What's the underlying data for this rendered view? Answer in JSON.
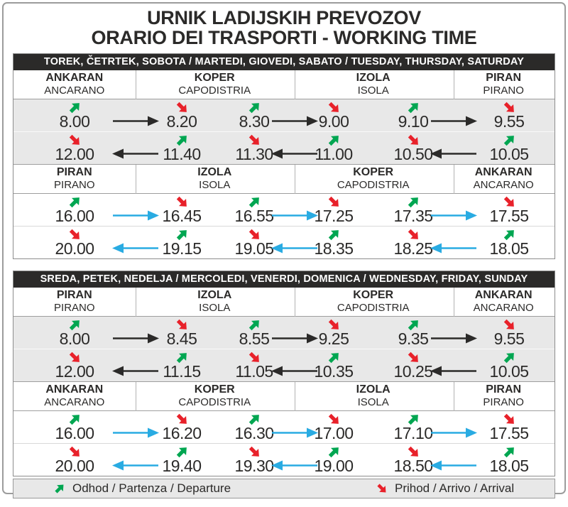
{
  "page": {
    "title_line1": "URNIK LADIJSKIH PREVOZOV",
    "title_line2": "ORARIO DEI TRASPORTI - WORKING TIME"
  },
  "colors": {
    "departure_green": "#00a651",
    "arrival_red": "#e8212a",
    "route_black": "#2b2a29",
    "route_blue": "#29abe2",
    "row_gray": "#e8e8e8",
    "banner_black": "#2b2a29"
  },
  "legend": {
    "departure_icon": "green-northeast-arrow",
    "departure_label": "Odhod / Partenza / Departure",
    "arrival_icon": "red-southeast-arrow",
    "arrival_label": "Prihod / Arrivo / Arrival"
  },
  "tables": [
    {
      "banner": "TOREK, ČETRTEK, SOBOTA / MARTEDI, GIOVEDI, SABATO / TUESDAY, THURSDAY, SATURDAY",
      "sections": [
        {
          "tone": "gray",
          "route_arrow": "black",
          "cities": [
            {
              "name": "ANKARAN",
              "subname": "ANCARANO"
            },
            {
              "name": "KOPER",
              "subname": "CAPODISTRIA"
            },
            {
              "name": "IZOLA",
              "subname": "ISOLA"
            },
            {
              "name": "PIRAN",
              "subname": "PIRANO"
            }
          ],
          "rows": [
            {
              "direction": "forward",
              "times": [
                {
                  "time": "8.00",
                  "event": "departure"
                },
                {
                  "time": "8.20",
                  "event": "arrival"
                },
                {
                  "time": "8.30",
                  "event": "departure"
                },
                {
                  "time": "9.00",
                  "event": "arrival"
                },
                {
                  "time": "9.10",
                  "event": "departure"
                },
                {
                  "time": "9.55",
                  "event": "arrival"
                }
              ]
            },
            {
              "direction": "return",
              "times": [
                {
                  "time": "12.00",
                  "event": "arrival"
                },
                {
                  "time": "11.40",
                  "event": "departure"
                },
                {
                  "time": "11.30",
                  "event": "arrival"
                },
                {
                  "time": "11.00",
                  "event": "departure"
                },
                {
                  "time": "10.50",
                  "event": "arrival"
                },
                {
                  "time": "10.05",
                  "event": "departure"
                }
              ]
            }
          ]
        },
        {
          "tone": "white",
          "route_arrow": "blue",
          "cities": [
            {
              "name": "PIRAN",
              "subname": "PIRANO"
            },
            {
              "name": "IZOLA",
              "subname": "ISOLA"
            },
            {
              "name": "KOPER",
              "subname": "CAPODISTRIA"
            },
            {
              "name": "ANKARAN",
              "subname": "ANCARANO"
            }
          ],
          "rows": [
            {
              "direction": "forward",
              "times": [
                {
                  "time": "16.00",
                  "event": "departure"
                },
                {
                  "time": "16.45",
                  "event": "arrival"
                },
                {
                  "time": "16.55",
                  "event": "departure"
                },
                {
                  "time": "17.25",
                  "event": "arrival"
                },
                {
                  "time": "17.35",
                  "event": "departure"
                },
                {
                  "time": "17.55",
                  "event": "arrival"
                }
              ]
            },
            {
              "direction": "return",
              "times": [
                {
                  "time": "20.00",
                  "event": "arrival"
                },
                {
                  "time": "19.15",
                  "event": "departure"
                },
                {
                  "time": "19.05",
                  "event": "arrival"
                },
                {
                  "time": "18.35",
                  "event": "departure"
                },
                {
                  "time": "18.25",
                  "event": "arrival"
                },
                {
                  "time": "18.05",
                  "event": "departure"
                }
              ]
            }
          ]
        }
      ]
    },
    {
      "banner": "SREDA, PETEK, NEDELJA / MERCOLEDI, VENERDI, DOMENICA / WEDNESDAY, FRIDAY, SUNDAY",
      "sections": [
        {
          "tone": "gray",
          "route_arrow": "black",
          "cities": [
            {
              "name": "PIRAN",
              "subname": "PIRANO"
            },
            {
              "name": "IZOLA",
              "subname": "ISOLA"
            },
            {
              "name": "KOPER",
              "subname": "CAPODISTRIA"
            },
            {
              "name": "ANKARAN",
              "subname": "ANCARANO"
            }
          ],
          "rows": [
            {
              "direction": "forward",
              "times": [
                {
                  "time": "8.00",
                  "event": "departure"
                },
                {
                  "time": "8.45",
                  "event": "arrival"
                },
                {
                  "time": "8.55",
                  "event": "departure"
                },
                {
                  "time": "9.25",
                  "event": "arrival"
                },
                {
                  "time": "9.35",
                  "event": "departure"
                },
                {
                  "time": "9.55",
                  "event": "arrival"
                }
              ]
            },
            {
              "direction": "return",
              "times": [
                {
                  "time": "12.00",
                  "event": "arrival"
                },
                {
                  "time": "11.15",
                  "event": "departure"
                },
                {
                  "time": "11.05",
                  "event": "arrival"
                },
                {
                  "time": "10.35",
                  "event": "departure"
                },
                {
                  "time": "10.25",
                  "event": "arrival"
                },
                {
                  "time": "10.05",
                  "event": "departure"
                }
              ]
            }
          ]
        },
        {
          "tone": "white",
          "route_arrow": "blue",
          "cities": [
            {
              "name": "ANKARAN",
              "subname": "ANCARANO"
            },
            {
              "name": "KOPER",
              "subname": "CAPODISTRIA"
            },
            {
              "name": "IZOLA",
              "subname": "ISOLA"
            },
            {
              "name": "PIRAN",
              "subname": "PIRANO"
            }
          ],
          "rows": [
            {
              "direction": "forward",
              "times": [
                {
                  "time": "16.00",
                  "event": "departure"
                },
                {
                  "time": "16.20",
                  "event": "arrival"
                },
                {
                  "time": "16.30",
                  "event": "departure"
                },
                {
                  "time": "17.00",
                  "event": "arrival"
                },
                {
                  "time": "17.10",
                  "event": "departure"
                },
                {
                  "time": "17.55",
                  "event": "arrival"
                }
              ]
            },
            {
              "direction": "return",
              "times": [
                {
                  "time": "20.00",
                  "event": "arrival"
                },
                {
                  "time": "19.40",
                  "event": "departure"
                },
                {
                  "time": "19.30",
                  "event": "arrival"
                },
                {
                  "time": "19.00",
                  "event": "departure"
                },
                {
                  "time": "18.50",
                  "event": "arrival"
                },
                {
                  "time": "18.05",
                  "event": "departure"
                }
              ]
            }
          ]
        }
      ]
    }
  ]
}
